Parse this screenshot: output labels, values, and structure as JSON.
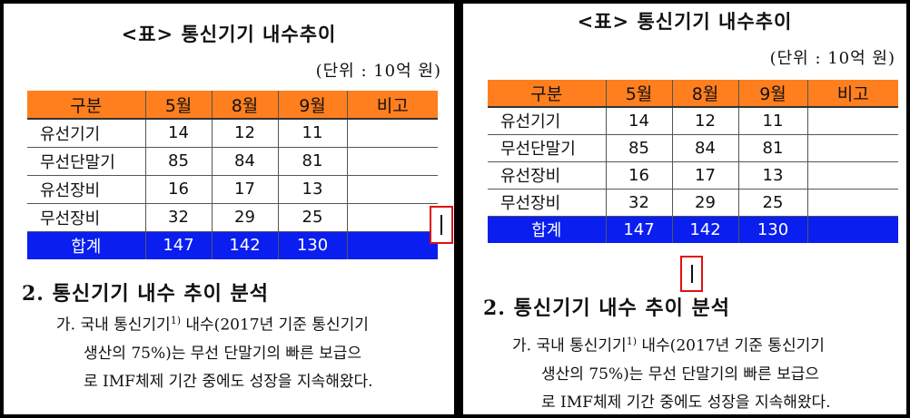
{
  "doc": {
    "title": "<표> 통신기기 내수추이",
    "unit": "(단위 : 10억 원)",
    "table": {
      "headers": [
        "구분",
        "5월",
        "8월",
        "9월",
        "비고"
      ],
      "rows": [
        [
          "유선기기",
          "14",
          "12",
          "11",
          ""
        ],
        [
          "무선단말기",
          "85",
          "84",
          "81",
          ""
        ],
        [
          "유선장비",
          "16",
          "17",
          "13",
          ""
        ],
        [
          "무선장비",
          "32",
          "29",
          "25",
          ""
        ]
      ],
      "total": [
        "합계",
        "147",
        "142",
        "130",
        ""
      ]
    },
    "heading": "2. 통신기기 내수 추이 분석",
    "para": {
      "marker": "가.",
      "l1_a": "국내 통신기기",
      "footnote": "1)",
      "l1_b": " 내수(2017년 기준 통신기기",
      "l2": "생산의 75%)는 무선 단말기의 빠른 보급으",
      "l3": "로 IMF체제 기간 중에도 성장을 지속해왔다."
    }
  },
  "colors": {
    "header_bg": "#ff7f1e",
    "total_bg": "#0a1ef0",
    "cursor_box": "#e01010"
  },
  "icons": {
    "cursor": "text-cursor-icon"
  }
}
